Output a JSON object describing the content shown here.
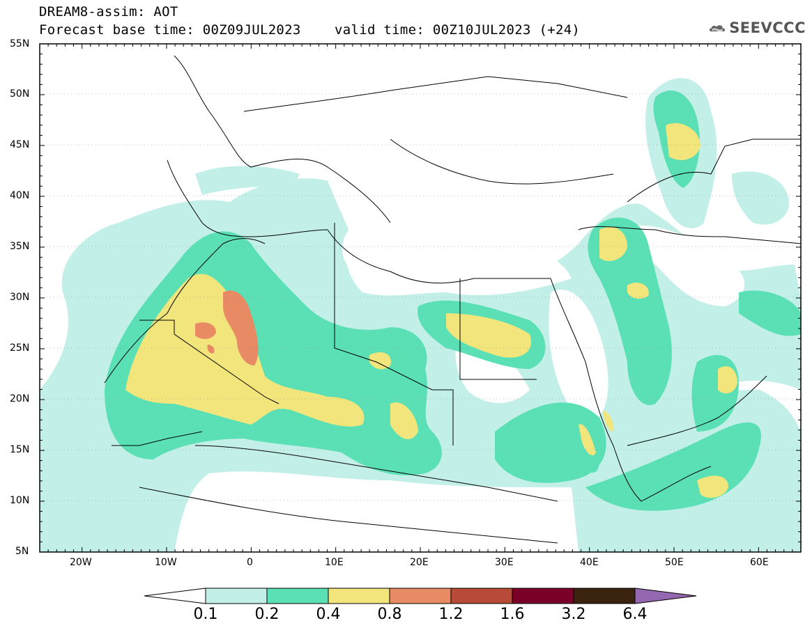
{
  "header": {
    "line1": "DREAM8-assim: AOT",
    "line2_left": "Forecast base time: 00Z09JUL2023",
    "line2_right": "valid time: 00Z10JUL2023 (+24)"
  },
  "logo": {
    "text": "SEEVCCC",
    "icon": "cloud-logo-icon"
  },
  "map": {
    "lat_labels": [
      "55N",
      "50N",
      "45N",
      "40N",
      "35N",
      "30N",
      "25N",
      "20N",
      "15N",
      "10N",
      "5N"
    ],
    "lon_labels": [
      "20W",
      "10W",
      "0",
      "10E",
      "20E",
      "30E",
      "40E",
      "50E",
      "60E"
    ]
  },
  "colorbar": {
    "labels": [
      "0.1",
      "0.2",
      "0.4",
      "0.8",
      "1.2",
      "1.6",
      "3.2",
      "6.4"
    ],
    "colors": [
      "#ffffff",
      "#c2f0e8",
      "#5ae0b4",
      "#f2e57b",
      "#e88a64",
      "#b84a38",
      "#7a0028",
      "#3a2410",
      "#9468b0"
    ]
  }
}
